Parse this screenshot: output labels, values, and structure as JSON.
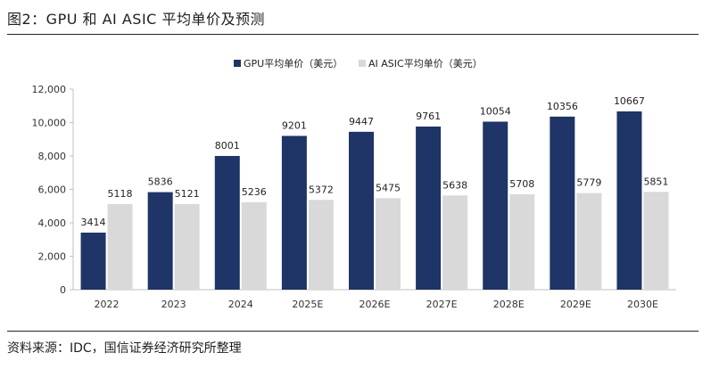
{
  "figure_title": "图2：GPU 和 AI ASIC 平均单价及预测",
  "source": "资料来源：IDC，国信证券经济研究所整理",
  "colors": {
    "gpu": "#1F3467",
    "asic": "#D9D9D9",
    "axis": "#BFBFBF"
  },
  "chart_data": {
    "type": "bar",
    "title": "",
    "xlabel": "",
    "ylabel": "",
    "ylim": [
      0,
      12000
    ],
    "yticks": [
      0,
      2000,
      4000,
      6000,
      8000,
      10000,
      12000
    ],
    "ytick_labels": [
      "0",
      "2,000",
      "4,000",
      "6,000",
      "8,000",
      "10,000",
      "12,000"
    ],
    "categories": [
      "2022",
      "2023",
      "2024",
      "2025E",
      "2026E",
      "2027E",
      "2028E",
      "2029E",
      "2030E"
    ],
    "legend_position": "top-center",
    "series": [
      {
        "name": "GPU平均单价（美元）",
        "values": [
          3414,
          5836,
          8001,
          9201,
          9447,
          9761,
          10054,
          10356,
          10667
        ]
      },
      {
        "name": "AI ASIC平均单价（美元）",
        "values": [
          5118,
          5121,
          5236,
          5372,
          5475,
          5638,
          5708,
          5779,
          5851
        ]
      }
    ]
  }
}
